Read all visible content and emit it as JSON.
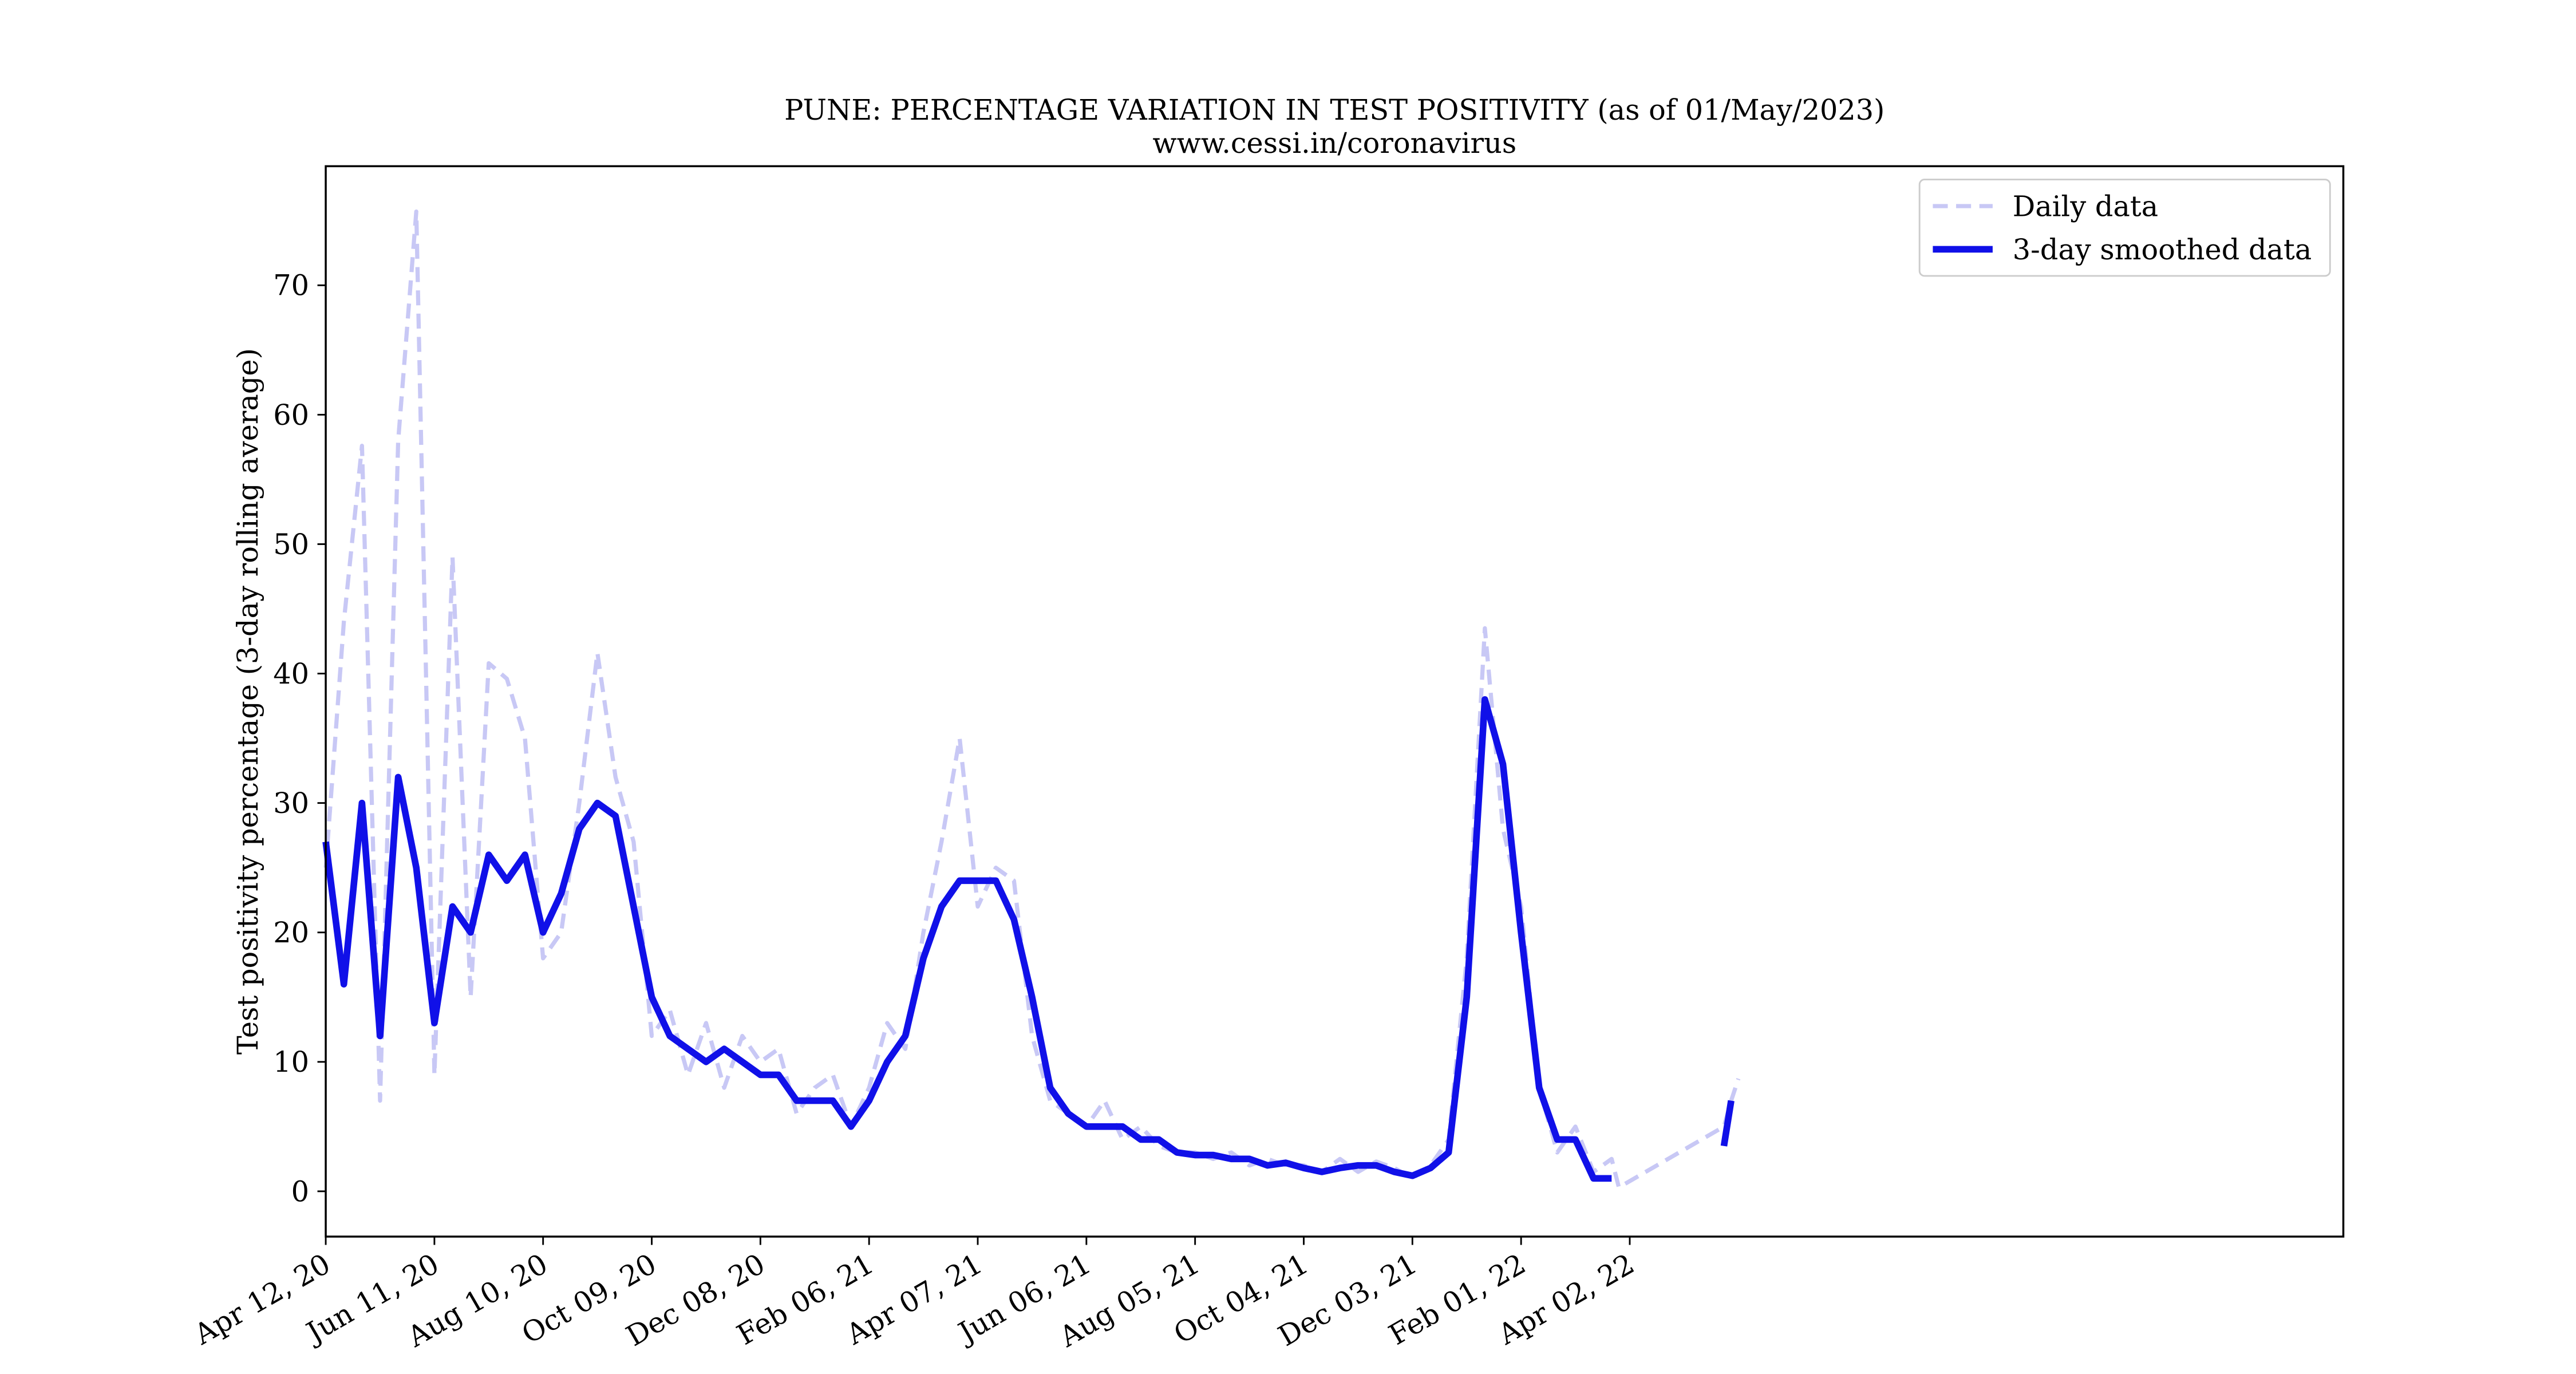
{
  "chart_data": {
    "type": "line",
    "title": "PUNE: PERCENTAGE VARIATION IN TEST POSITIVITY (as of 01/May/2023)",
    "subtitle": "www.cessi.in/coronavirus",
    "y_label": "Test positivity percentage (3-day rolling average)",
    "x": [
      "2020-04-12",
      "2020-04-22",
      "2020-05-02",
      "2020-05-12",
      "2020-05-22",
      "2020-06-01",
      "2020-06-11",
      "2020-06-21",
      "2020-07-01",
      "2020-07-11",
      "2020-07-21",
      "2020-07-31",
      "2020-08-10",
      "2020-08-20",
      "2020-08-30",
      "2020-09-09",
      "2020-09-19",
      "2020-09-29",
      "2020-10-09",
      "2020-10-19",
      "2020-10-29",
      "2020-11-08",
      "2020-11-18",
      "2020-11-28",
      "2020-12-08",
      "2020-12-18",
      "2020-12-28",
      "2021-01-07",
      "2021-01-17",
      "2021-01-27",
      "2021-02-06",
      "2021-02-16",
      "2021-02-26",
      "2021-03-08",
      "2021-03-18",
      "2021-03-28",
      "2021-04-07",
      "2021-04-17",
      "2021-04-27",
      "2021-05-07",
      "2021-05-17",
      "2021-05-27",
      "2021-06-06",
      "2021-06-16",
      "2021-06-26",
      "2021-07-06",
      "2021-07-16",
      "2021-07-26",
      "2021-08-05",
      "2021-08-15",
      "2021-08-25",
      "2021-09-04",
      "2021-09-14",
      "2021-09-24",
      "2021-10-04",
      "2021-10-14",
      "2021-10-24",
      "2021-11-03",
      "2021-11-13",
      "2021-11-23",
      "2021-12-03",
      "2021-12-13",
      "2021-12-23",
      "2022-01-02",
      "2022-01-12",
      "2022-01-22",
      "2022-02-01",
      "2022-02-11",
      "2022-02-21",
      "2022-03-03",
      "2022-03-13",
      "2022-03-23",
      "2022-03-27",
      "2022-05-24",
      "2022-05-28",
      "2022-06-01"
    ],
    "series": [
      {
        "name": "Daily data",
        "color": "#c8c8f5",
        "dashed": true,
        "values": [
          25,
          44,
          57.6,
          7,
          58,
          75.7,
          9,
          49,
          15,
          40.8,
          39.6,
          35,
          18,
          20,
          30,
          41.6,
          32,
          27,
          12,
          14,
          9,
          13,
          8,
          12,
          10,
          11,
          6,
          8,
          9,
          5,
          8,
          13,
          11,
          20,
          27,
          35,
          22,
          25,
          24,
          12,
          7,
          6,
          5,
          7,
          4,
          5,
          3.5,
          3,
          3,
          2.5,
          3,
          2,
          2.5,
          2,
          2,
          1.5,
          2.5,
          1.5,
          2.3,
          1.8,
          1,
          2,
          4,
          18,
          43.5,
          28,
          22,
          8,
          3,
          5,
          1.5,
          2.5,
          0.3,
          5,
          7,
          8.7
        ]
      },
      {
        "name": "3-day smoothed data",
        "color": "#1010e8",
        "dashed": false,
        "values": [
          27,
          16,
          30,
          12,
          32,
          25,
          13,
          22,
          20,
          26,
          24,
          26,
          20,
          23,
          28,
          30,
          29,
          22,
          15,
          12,
          11,
          10,
          11,
          10,
          9,
          9,
          7,
          7,
          7,
          5,
          7,
          10,
          12,
          18,
          22,
          24,
          24,
          24,
          21,
          15,
          8,
          6,
          5,
          5,
          5,
          4,
          4,
          3,
          2.8,
          2.8,
          2.5,
          2.5,
          2,
          2.2,
          1.8,
          1.5,
          1.8,
          2,
          2,
          1.5,
          1.2,
          1.8,
          3,
          15,
          38,
          33,
          20,
          8,
          4,
          4,
          1,
          1,
          null,
          3.5,
          7,
          null
        ]
      }
    ],
    "xlim": [
      "2020-04-12",
      "2023-05-01"
    ],
    "xticks": [
      {
        "value": "2020-04-12",
        "label": "Apr 12, 20"
      },
      {
        "value": "2020-06-11",
        "label": "Jun 11, 20"
      },
      {
        "value": "2020-08-10",
        "label": "Aug 10, 20"
      },
      {
        "value": "2020-10-09",
        "label": "Oct 09, 20"
      },
      {
        "value": "2020-12-08",
        "label": "Dec 08, 20"
      },
      {
        "value": "2021-02-06",
        "label": "Feb 06, 21"
      },
      {
        "value": "2021-04-07",
        "label": "Apr 07, 21"
      },
      {
        "value": "2021-06-06",
        "label": "Jun 06, 21"
      },
      {
        "value": "2021-08-05",
        "label": "Aug 05, 21"
      },
      {
        "value": "2021-10-04",
        "label": "Oct 04, 21"
      },
      {
        "value": "2021-12-03",
        "label": "Dec 03, 21"
      },
      {
        "value": "2022-02-01",
        "label": "Feb 01, 22"
      },
      {
        "value": "2022-04-02",
        "label": "Apr 02, 22"
      }
    ],
    "ylim": [
      -3.5,
      79.2
    ],
    "yticks": [
      0,
      10,
      20,
      30,
      40,
      50,
      60,
      70
    ],
    "legend": "upper right"
  }
}
